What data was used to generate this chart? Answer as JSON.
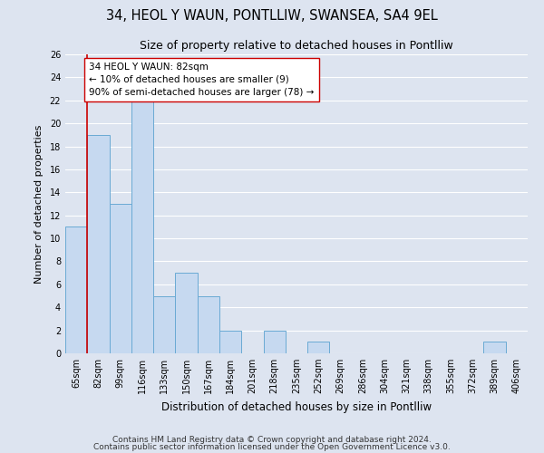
{
  "title": "34, HEOL Y WAUN, PONTLLIW, SWANSEA, SA4 9EL",
  "subtitle": "Size of property relative to detached houses in Pontlliw",
  "xlabel": "Distribution of detached houses by size in Pontlliw",
  "ylabel": "Number of detached properties",
  "footnote1": "Contains HM Land Registry data © Crown copyright and database right 2024.",
  "footnote2": "Contains public sector information licensed under the Open Government Licence v3.0.",
  "bin_labels": [
    "65sqm",
    "82sqm",
    "99sqm",
    "116sqm",
    "133sqm",
    "150sqm",
    "167sqm",
    "184sqm",
    "201sqm",
    "218sqm",
    "235sqm",
    "252sqm",
    "269sqm",
    "286sqm",
    "304sqm",
    "321sqm",
    "338sqm",
    "355sqm",
    "372sqm",
    "389sqm",
    "406sqm"
  ],
  "bar_values": [
    11,
    19,
    13,
    22,
    5,
    7,
    5,
    2,
    0,
    2,
    0,
    1,
    0,
    0,
    0,
    0,
    0,
    0,
    0,
    1,
    0
  ],
  "bar_color": "#c6d9f0",
  "bar_edge_color": "#6aaad4",
  "highlight_line_color": "#cc0000",
  "annotation_box_text": "34 HEOL Y WAUN: 82sqm\n← 10% of detached houses are smaller (9)\n90% of semi-detached houses are larger (78) →",
  "annotation_box_edge_color": "#cc0000",
  "annotation_box_facecolor": "white",
  "ylim": [
    0,
    26
  ],
  "ytick_step": 2,
  "background_color": "#dde4f0",
  "plot_background_color": "#dde4f0",
  "grid_color": "white",
  "title_fontsize": 10.5,
  "subtitle_fontsize": 9,
  "ylabel_fontsize": 8,
  "xlabel_fontsize": 8.5,
  "tick_fontsize": 7,
  "annotation_fontsize": 7.5,
  "footnote_fontsize": 6.5
}
